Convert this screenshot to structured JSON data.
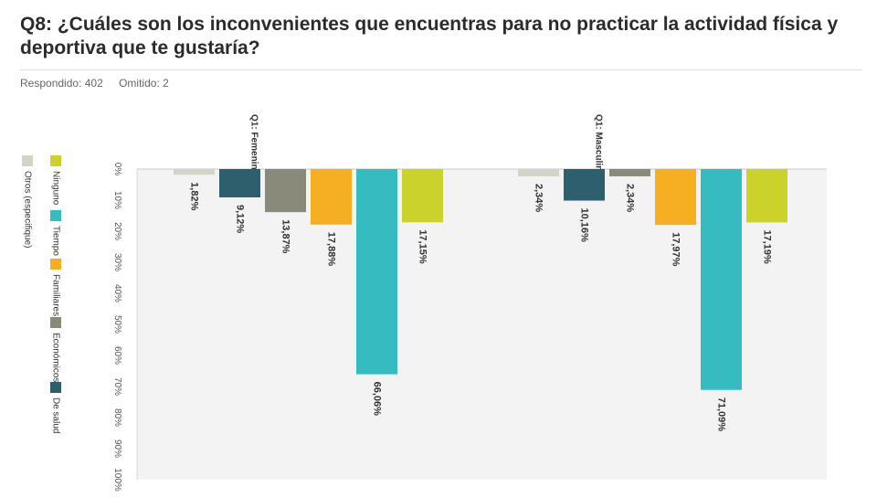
{
  "header": {
    "title": "Q8: ¿Cuáles son los inconvenientes que encuentras para no practicar la actividad física y deportiva que te gustaría?",
    "answered": "Respondido: 402",
    "skipped": "Omitido: 2"
  },
  "chart_data": {
    "type": "bar",
    "orientation": "rotated-90",
    "title": "",
    "ylim": [
      0,
      100
    ],
    "y_ticks": [
      "0%",
      "10%",
      "20%",
      "30%",
      "40%",
      "50%",
      "60%",
      "70%",
      "80%",
      "90%",
      "100%"
    ],
    "categories": [
      "Otros (especifique)",
      "De salud",
      "Económicos",
      "Familiares",
      "Tiempo",
      "Ninguno"
    ],
    "legend": [
      {
        "name": "Ninguno",
        "color": "#ccd22c"
      },
      {
        "name": "Otros (especifique)",
        "color": "#d3d3c8"
      },
      {
        "name": "Tiempo",
        "color": "#35bcc0"
      },
      {
        "name": "Familiares",
        "color": "#f6ae22"
      },
      {
        "name": "Económicos",
        "color": "#8a8a7a"
      },
      {
        "name": "De salud",
        "color": "#2e5f6d"
      }
    ],
    "groups": [
      {
        "name": "Q1: Femenino",
        "values": [
          1.82,
          9.12,
          13.87,
          17.88,
          66.06,
          17.15
        ],
        "labels": [
          "1,82%",
          "9,12%",
          "13,87%",
          "17,88%",
          "66,06%",
          "17,15%"
        ]
      },
      {
        "name": "Q1: Masculino",
        "values": [
          2.34,
          10.16,
          2.34,
          17.97,
          71.09,
          17.19
        ],
        "labels": [
          "2,34%",
          "10,16%",
          "2,34%",
          "17,97%",
          "71,09%",
          "17,19%"
        ]
      }
    ],
    "colors": [
      "#d3d3c8",
      "#2e5f6d",
      "#8a8a7a",
      "#f6ae22",
      "#35bcc0",
      "#ccd22c"
    ]
  }
}
